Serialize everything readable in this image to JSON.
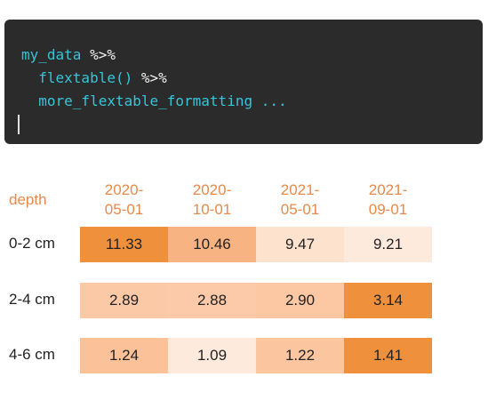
{
  "code": {
    "lines": [
      [
        {
          "t": "my_data ",
          "c": "cyan"
        },
        {
          "t": "%>%",
          "c": "white"
        }
      ],
      [
        {
          "t": "  flextable() ",
          "c": "cyan"
        },
        {
          "t": "%>%",
          "c": "white"
        }
      ],
      [
        {
          "t": "  more_flextable_formatting ...",
          "c": "cyan"
        }
      ]
    ]
  },
  "table": {
    "corner_header": "depth",
    "column_headers": [
      [
        "2020-",
        "05-01"
      ],
      [
        "2020-",
        "10-01"
      ],
      [
        "2021-",
        "05-01"
      ],
      [
        "2021-",
        "09-01"
      ]
    ],
    "rows": [
      {
        "label": "0-2 cm",
        "cells": [
          {
            "text": "11.33",
            "fill": "#ef903d"
          },
          {
            "text": "10.46",
            "fill": "#f8b382"
          },
          {
            "text": "9.47",
            "fill": "#fde2cd"
          },
          {
            "text": "9.21",
            "fill": "#feeadc"
          }
        ]
      },
      {
        "label": "2-4 cm",
        "cells": [
          {
            "text": "2.89",
            "fill": "#fcc9a6"
          },
          {
            "text": "2.88",
            "fill": "#fccaa8"
          },
          {
            "text": "2.90",
            "fill": "#fcc8a3"
          },
          {
            "text": "3.14",
            "fill": "#ef903d"
          }
        ]
      },
      {
        "label": "4-6 cm",
        "cells": [
          {
            "text": "1.24",
            "fill": "#fbc29a"
          },
          {
            "text": "1.09",
            "fill": "#feeadc"
          },
          {
            "text": "1.22",
            "fill": "#fbc59f"
          },
          {
            "text": "1.41",
            "fill": "#ef903d"
          }
        ]
      }
    ]
  }
}
